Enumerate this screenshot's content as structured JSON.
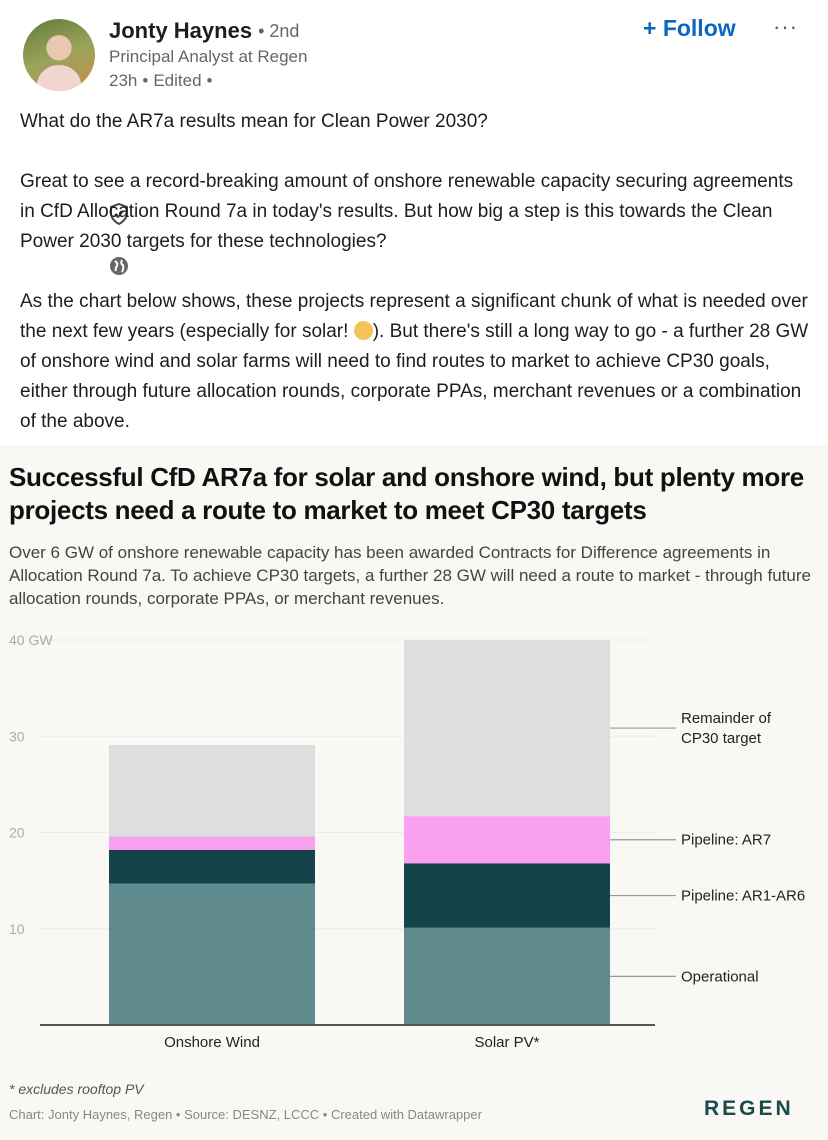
{
  "author": {
    "name": "Jonty Haynes",
    "verified_icon": "shield-check-icon",
    "degree": "• 2nd",
    "headline": "Principal Analyst at Regen",
    "time": "23h",
    "edited": "Edited",
    "visibility_icon": "globe-icon"
  },
  "actions": {
    "follow_label": "+ Follow",
    "more_label": "···"
  },
  "post": {
    "paragraphs": [
      "What do the AR7a results mean for Clean Power 2030?",
      "Great to see a record-breaking amount of onshore renewable capacity securing agreements in CfD Allocation Round 7a in today's results. But how big a step is this towards the Clean Power 2030 targets for these technologies?",
      "As the chart below shows, these projects represent a significant chunk of what is needed over the next few years (especially for solar! ",
      "). But there's still a long way to go - a further 28 GW of onshore wind and solar farms will need to find routes to market to achieve CP30 goals, either through future allocation rounds, corporate PPAs, merchant revenues or a combination of the above."
    ]
  },
  "chart": {
    "title": "Successful CfD AR7a for solar and onshore wind, but plenty more projects need a route to market to meet CP30 targets",
    "subtitle": "Over 6 GW of onshore renewable capacity has been awarded Contracts for Difference agreements in Allocation Round 7a. To achieve CP30 targets, a further 28 GW will need a route to market - through future allocation rounds, corporate PPAs, or merchant revenues.",
    "note": "* excludes rooftop PV",
    "credit": "Chart: Jonty Haynes, Regen • Source: DESNZ, LCCC • Created with Datawrapper",
    "logo": "REGEN"
  },
  "chart_data": {
    "type": "bar",
    "stacked": true,
    "categories": [
      "Onshore Wind",
      "Solar PV*"
    ],
    "series": [
      {
        "name": "Operational",
        "color": "#5f8b8f",
        "values": [
          14.7,
          10.1
        ]
      },
      {
        "name": "Pipeline: AR1-AR6",
        "color": "#14444a",
        "values": [
          3.5,
          6.7
        ]
      },
      {
        "name": "Pipeline: AR7",
        "color": "#f9a0ef",
        "values": [
          1.4,
          4.9
        ]
      },
      {
        "name": "Remainder of CP30 target",
        "color": "#dededf",
        "values": [
          9.5,
          18.3
        ]
      }
    ],
    "yticks": [
      "10",
      "20",
      "30",
      "40 GW"
    ],
    "ytick_values": [
      10,
      20,
      30,
      40
    ],
    "ylim": [
      0,
      40
    ],
    "grid": true,
    "legend": "right (direct labels)"
  }
}
